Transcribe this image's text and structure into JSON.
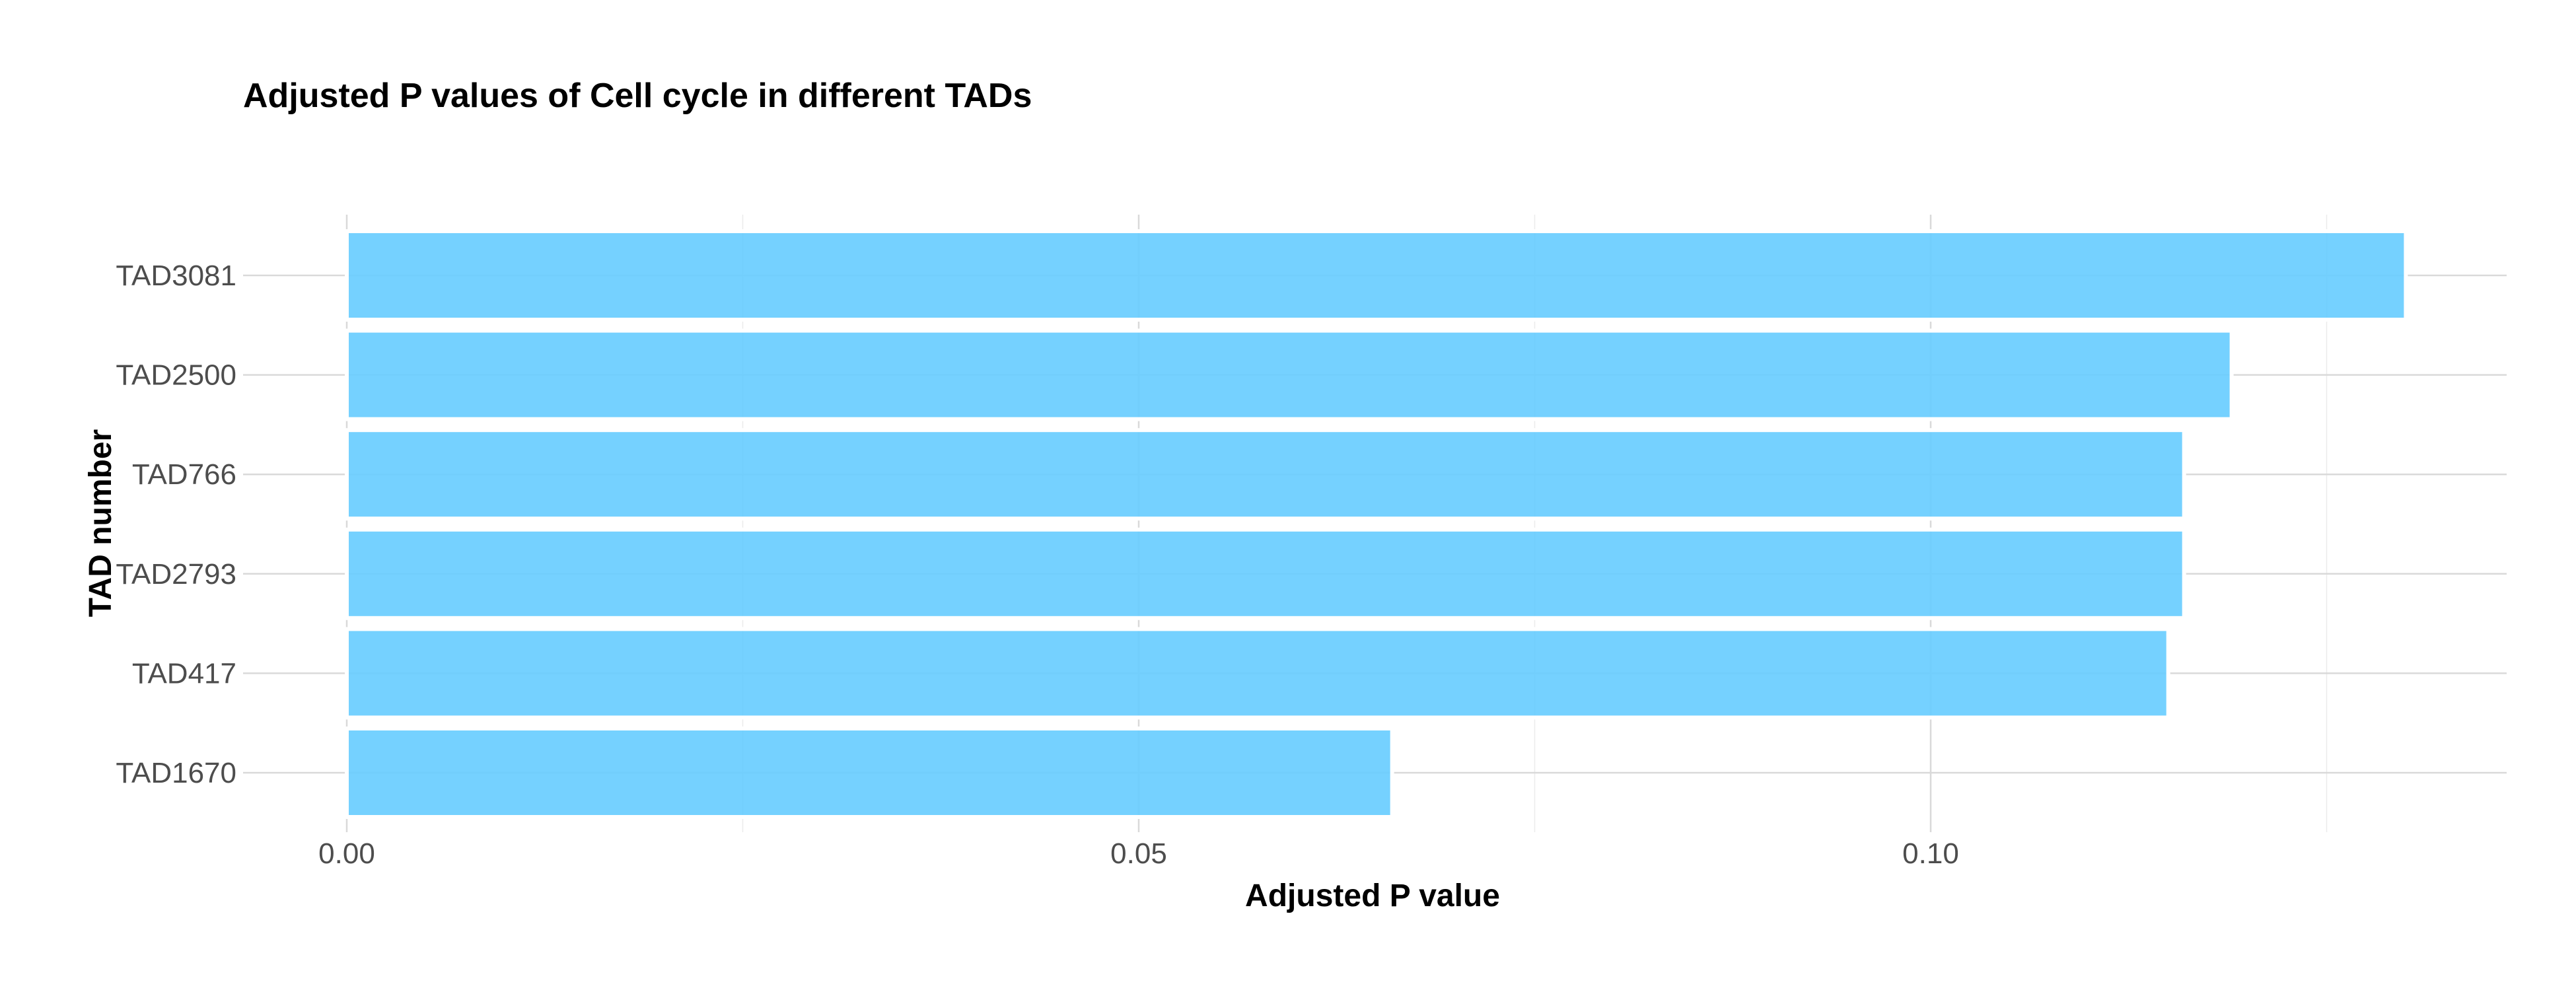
{
  "chart_data": {
    "type": "bar",
    "orientation": "horizontal",
    "title": "Adjusted P values of Cell cycle in different TADs",
    "xlabel": "Adjusted P value",
    "ylabel": "TAD number",
    "categories": [
      "TAD3081",
      "TAD2500",
      "TAD766",
      "TAD2793",
      "TAD417",
      "TAD1670"
    ],
    "values": [
      0.13,
      0.119,
      0.116,
      0.116,
      0.115,
      0.066
    ],
    "xlim": [
      0,
      0.136
    ],
    "xticks": [
      0.0,
      0.05,
      0.1
    ],
    "xtick_labels": [
      "0.00",
      "0.05",
      "0.10"
    ],
    "minor_xticks": [
      0.025,
      0.075,
      0.125
    ],
    "grid": true,
    "legend": "none",
    "bar_color": "#66CCFF"
  }
}
